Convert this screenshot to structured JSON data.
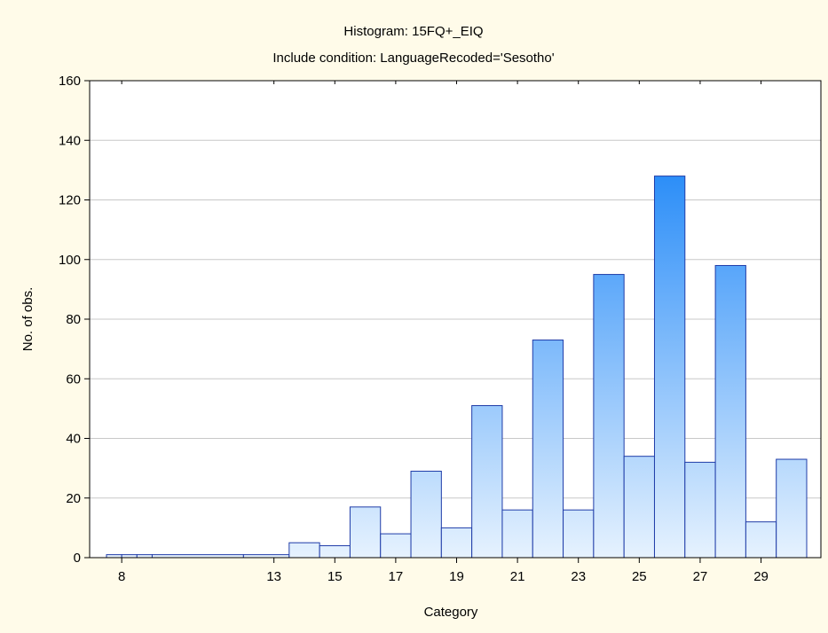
{
  "chart_data": {
    "type": "bar",
    "title": "Histogram: 15FQ+_EIQ",
    "subtitle": "Include condition: LanguageRecoded='Sesotho'",
    "xlabel": "Category",
    "ylabel": "No. of obs.",
    "ylim": [
      0,
      160
    ],
    "yticks": [
      "0",
      "20",
      "40",
      "60",
      "80",
      "100",
      "120",
      "140",
      "160"
    ],
    "xticks": [
      {
        "label": "8",
        "at": 8
      },
      {
        "label": "13",
        "at": 13
      },
      {
        "label": "15",
        "at": 15
      },
      {
        "label": "17",
        "at": 17
      },
      {
        "label": "19",
        "at": 19
      },
      {
        "label": "21",
        "at": 21
      },
      {
        "label": "23",
        "at": 23
      },
      {
        "label": "25",
        "at": 25
      },
      {
        "label": "27",
        "at": 27
      },
      {
        "label": "29",
        "at": 29
      }
    ],
    "grid": true,
    "bars": [
      {
        "from": 7.5,
        "to": 8.0,
        "value": 1
      },
      {
        "from": 8.0,
        "to": 8.5,
        "value": 1
      },
      {
        "from": 8.5,
        "to": 9.0,
        "value": 1
      },
      {
        "from": 9.0,
        "to": 12.0,
        "value": 1
      },
      {
        "from": 12.0,
        "to": 13.5,
        "value": 1
      },
      {
        "from": 13.5,
        "to": 14.5,
        "value": 5
      },
      {
        "from": 14.5,
        "to": 15.5,
        "value": 4
      },
      {
        "from": 15.5,
        "to": 16.5,
        "value": 17
      },
      {
        "from": 16.5,
        "to": 17.5,
        "value": 8
      },
      {
        "from": 17.5,
        "to": 18.5,
        "value": 29
      },
      {
        "from": 18.5,
        "to": 19.5,
        "value": 10
      },
      {
        "from": 19.5,
        "to": 20.5,
        "value": 51
      },
      {
        "from": 20.5,
        "to": 21.5,
        "value": 16
      },
      {
        "from": 21.5,
        "to": 22.5,
        "value": 73
      },
      {
        "from": 22.5,
        "to": 23.5,
        "value": 16
      },
      {
        "from": 23.5,
        "to": 24.5,
        "value": 95
      },
      {
        "from": 24.5,
        "to": 25.5,
        "value": 34
      },
      {
        "from": 25.5,
        "to": 26.5,
        "value": 128
      },
      {
        "from": 26.5,
        "to": 27.5,
        "value": 32
      },
      {
        "from": 27.5,
        "to": 28.5,
        "value": 98
      },
      {
        "from": 28.5,
        "to": 29.5,
        "value": 12
      },
      {
        "from": 29.5,
        "to": 30.5,
        "value": 33
      }
    ],
    "colors": {
      "background": "#fffbe9",
      "plot_background": "#ffffff",
      "bar_light": "#e6f2fe",
      "bar_dark": "#2c8ef8",
      "bar_edge": "#1f3ca8"
    }
  }
}
